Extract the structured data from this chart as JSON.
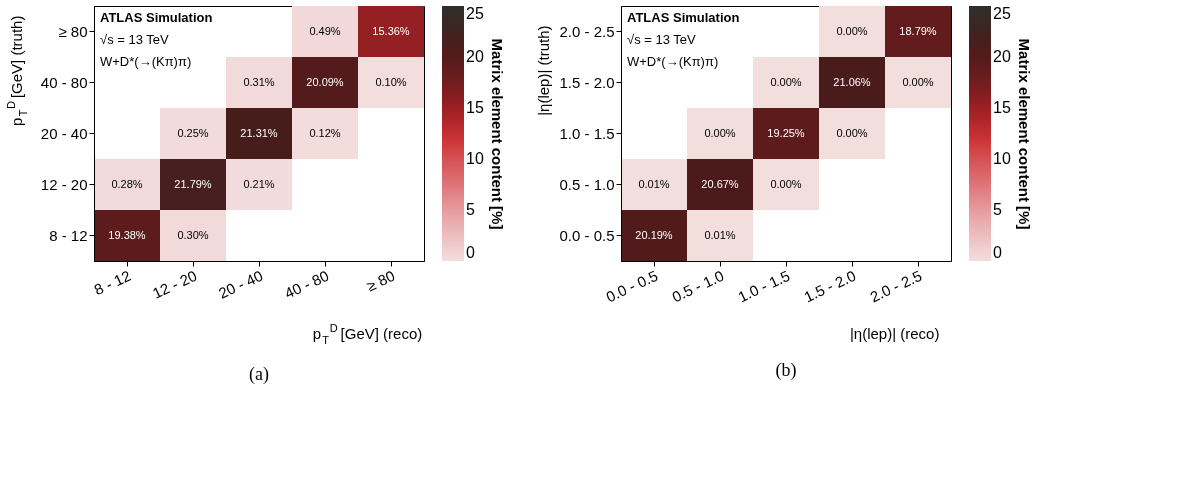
{
  "chart_data": [
    {
      "type": "heatmap",
      "xlabel": "p$_{T}$$^{D}$ [GeV] (reco)",
      "ylabel": "p$_{T}$$^{D}$ [GeV] (truth)",
      "clabel": "Matrix element content [%]",
      "categories": [
        "8 - 12",
        "12 - 20",
        "20 - 40",
        "40 - 80",
        "≥ 80"
      ],
      "y_categories": [
        "≥ 80",
        "40 - 80",
        "20 - 40",
        "12 - 20",
        "8 - 12"
      ],
      "cells": [
        [
          null,
          null,
          null,
          0.49,
          15.36
        ],
        [
          null,
          null,
          0.31,
          20.09,
          0.1
        ],
        [
          null,
          0.25,
          21.31,
          0.12,
          null
        ],
        [
          0.28,
          21.79,
          0.21,
          null,
          null
        ],
        [
          19.38,
          0.3,
          null,
          null,
          null
        ]
      ],
      "cell_labels": [
        [
          null,
          null,
          null,
          "0.49%",
          "15.36%"
        ],
        [
          null,
          null,
          "0.31%",
          "20.09%",
          "0.10%"
        ],
        [
          null,
          "0.25%",
          "21.31%",
          "0.12%",
          null
        ],
        [
          "0.28%",
          "21.79%",
          "0.21%",
          null,
          null
        ],
        [
          "19.38%",
          "0.30%",
          null,
          null,
          null
        ]
      ],
      "clim": [
        0,
        25
      ],
      "cticks": [
        0,
        5,
        10,
        15,
        20,
        25
      ],
      "annotations": [
        "ATLAS Simulation",
        "√s = 13 TeV",
        "W+D*(→(Kπ)π)",
        "(a)"
      ]
    },
    {
      "type": "heatmap",
      "xlabel": "|η(lep)| (reco)",
      "ylabel": "|η(lep)| (truth)",
      "clabel": "Matrix element content [%]",
      "categories": [
        "0.0 - 0.5",
        "0.5 - 1.0",
        "1.0 - 1.5",
        "1.5 - 2.0",
        "2.0 - 2.5"
      ],
      "y_categories": [
        "2.0 - 2.5",
        "1.5 - 2.0",
        "1.0 - 1.5",
        "0.5 - 1.0",
        "0.0 - 0.5"
      ],
      "cells": [
        [
          null,
          null,
          null,
          0.0,
          18.79
        ],
        [
          null,
          null,
          0.0,
          21.06,
          0.0
        ],
        [
          null,
          0.0,
          19.25,
          0.0,
          null
        ],
        [
          0.01,
          20.67,
          0.0,
          null,
          null
        ],
        [
          20.19,
          0.01,
          null,
          null,
          null
        ]
      ],
      "cell_labels": [
        [
          null,
          null,
          null,
          "0.00%",
          "18.79%"
        ],
        [
          null,
          null,
          "0.00%",
          "21.06%",
          "0.00%"
        ],
        [
          null,
          "0.00%",
          "19.25%",
          "0.00%",
          null
        ],
        [
          "0.01%",
          "20.67%",
          "0.00%",
          null,
          null
        ],
        [
          "20.19%",
          "0.01%",
          null,
          null,
          null
        ]
      ],
      "clim": [
        0,
        25
      ],
      "cticks": [
        0,
        5,
        10,
        15,
        20,
        25
      ],
      "annotations": [
        "ATLAS Simulation",
        "√s = 13 TeV",
        "W+D*(→(Kπ)π)",
        "(b)"
      ]
    }
  ]
}
